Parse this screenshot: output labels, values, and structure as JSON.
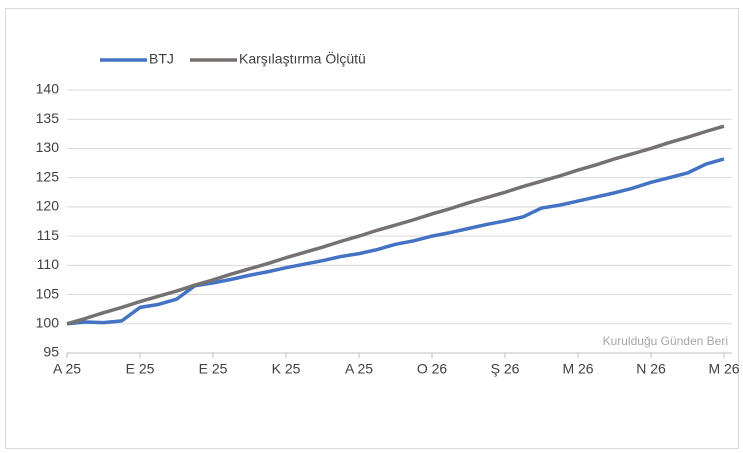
{
  "chart_data": {
    "type": "line",
    "categories": [
      "A 25",
      null,
      null,
      null,
      "E 25",
      null,
      null,
      null,
      "E 25",
      null,
      null,
      null,
      "K 25",
      null,
      null,
      null,
      "A 25",
      null,
      null,
      null,
      "O 26",
      null,
      null,
      null,
      "Ş 26",
      null,
      null,
      null,
      "M 26",
      null,
      null,
      null,
      "N 26",
      null,
      null,
      null,
      "M 26"
    ],
    "series": [
      {
        "name": "BTJ",
        "color": "#4472c4",
        "values": [
          100,
          100.3,
          100.2,
          100.5,
          102.8,
          103.3,
          104.2,
          106.5,
          107,
          107.6,
          108.3,
          108.9,
          109.6,
          110.2,
          110.8,
          111.5,
          112,
          112.7,
          113.6,
          114.2,
          115,
          115.6,
          116.3,
          117,
          117.6,
          118.3,
          119.8,
          120.3,
          121,
          121.7,
          122.4,
          123.2,
          124.2,
          125,
          125.8,
          127.3,
          128.2
        ]
      },
      {
        "name": "Karşılaştırma Ölçütü",
        "color": "#767171",
        "values": [
          100,
          100.9,
          101.9,
          102.8,
          103.8,
          104.7,
          105.6,
          106.6,
          107.5,
          108.5,
          109.4,
          110.3,
          111.3,
          112.2,
          113.1,
          114.1,
          115,
          116,
          116.9,
          117.8,
          118.8,
          119.7,
          120.7,
          121.6,
          122.5,
          123.5,
          124.4,
          125.3,
          126.3,
          127.2,
          128.2,
          129.1,
          130,
          131,
          131.9,
          132.9,
          133.8
        ]
      }
    ],
    "ylim": [
      95,
      140
    ],
    "yticks": [
      95,
      100,
      105,
      110,
      115,
      120,
      125,
      130,
      135,
      140
    ],
    "grid": true,
    "legend": "top-left",
    "annotations": [
      "Kurulduğu Günden Beri"
    ]
  }
}
